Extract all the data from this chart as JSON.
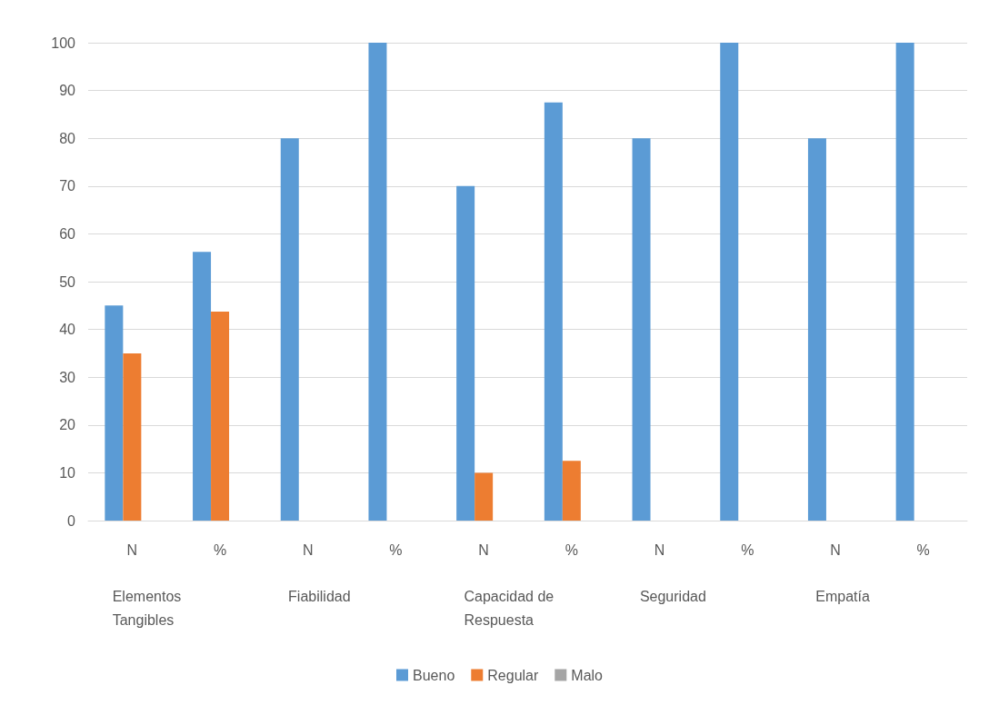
{
  "chart_data": {
    "type": "bar",
    "categories": [
      "N",
      "%",
      "N",
      "%",
      "N",
      "%",
      "N",
      "%",
      "N",
      "%"
    ],
    "annotations": [
      "Elementos Tangibles",
      "Fiabilidad",
      "Capacidad de Respuesta",
      "Seguridad",
      "Empatía"
    ],
    "series": [
      {
        "name": "Bueno",
        "color": "#5b9bd5",
        "values": [
          45,
          56.25,
          80,
          100,
          70,
          87.5,
          80,
          100,
          80,
          100
        ]
      },
      {
        "name": "Regular",
        "color": "#ed7d31",
        "values": [
          35,
          43.75,
          0,
          0,
          10,
          12.5,
          0,
          0,
          0,
          0
        ]
      },
      {
        "name": "Malo",
        "color": "#a5a5a5",
        "values": [
          0,
          0,
          0,
          0,
          0,
          0,
          0,
          0,
          0,
          0
        ]
      }
    ],
    "ylim": [
      0,
      100
    ],
    "yticks": [
      0,
      10,
      20,
      30,
      40,
      50,
      60,
      70,
      80,
      90,
      100
    ],
    "grid": "y",
    "legend": "bottom"
  }
}
